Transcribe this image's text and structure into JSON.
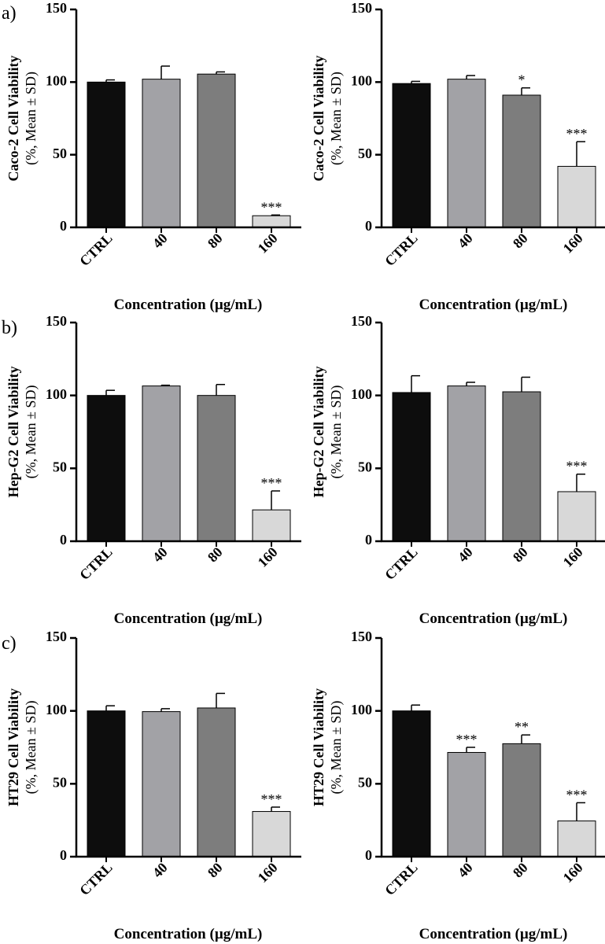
{
  "panel_labels": [
    "a)",
    "b)",
    "c)"
  ],
  "colors": {
    "CTRL": "#0d0d0d",
    "40": "#a2a2a6",
    "80": "#7d7d7d",
    "160": "#d8d8d8",
    "axis": "#000000"
  },
  "chart_data": [
    {
      "type": "bar",
      "categories": [
        "CTRL",
        "40",
        "80",
        "160"
      ],
      "values": [
        100,
        102,
        105.5,
        8
      ],
      "errors": [
        1.5,
        9,
        1.5,
        0.5
      ],
      "significance": [
        "",
        "",
        "",
        "***"
      ],
      "ylim": [
        0,
        150
      ],
      "yticks": [
        0,
        50,
        100,
        150
      ],
      "ylabel": "Caco-2 Cell Viability",
      "ylabel_sub": "(%, Mean ± SD)",
      "xlabel": "Concentration (µg/mL)",
      "grid": false
    },
    {
      "type": "bar",
      "categories": [
        "CTRL",
        "40",
        "80",
        "160"
      ],
      "values": [
        99,
        102,
        91,
        42
      ],
      "errors": [
        1.5,
        2.5,
        5,
        17
      ],
      "significance": [
        "",
        "",
        "*",
        "***"
      ],
      "ylim": [
        0,
        150
      ],
      "yticks": [
        0,
        50,
        100,
        150
      ],
      "ylabel": "Caco-2 Cell Viability",
      "ylabel_sub": "(%, Mean ± SD)",
      "xlabel": "Concentration (µg/mL)",
      "grid": false
    },
    {
      "type": "bar",
      "categories": [
        "CTRL",
        "40",
        "80",
        "160"
      ],
      "values": [
        100,
        106.5,
        100,
        21.5
      ],
      "errors": [
        3.5,
        0.5,
        7.5,
        13
      ],
      "significance": [
        "",
        "",
        "",
        "***"
      ],
      "ylim": [
        0,
        150
      ],
      "yticks": [
        0,
        50,
        100,
        150
      ],
      "ylabel": "Hep-G2 Cell Viability",
      "ylabel_sub": "(%, Mean ± SD)",
      "xlabel": "Concentration (µg/mL)",
      "grid": false
    },
    {
      "type": "bar",
      "categories": [
        "CTRL",
        "40",
        "80",
        "160"
      ],
      "values": [
        102,
        106.5,
        102.5,
        34
      ],
      "errors": [
        11.5,
        2.5,
        10,
        12
      ],
      "significance": [
        "",
        "",
        "",
        "***"
      ],
      "ylim": [
        0,
        150
      ],
      "yticks": [
        0,
        50,
        100,
        150
      ],
      "ylabel": "Hep-G2 Cell Viability",
      "ylabel_sub": "(%, Mean ± SD)",
      "xlabel": "Concentration (µg/mL)",
      "grid": false
    },
    {
      "type": "bar",
      "categories": [
        "CTRL",
        "40",
        "80",
        "160"
      ],
      "values": [
        100,
        99.5,
        102,
        31
      ],
      "errors": [
        3.5,
        2,
        10,
        3
      ],
      "significance": [
        "",
        "",
        "",
        "***"
      ],
      "ylim": [
        0,
        150
      ],
      "yticks": [
        0,
        50,
        100,
        150
      ],
      "ylabel": "HT29 Cell Viability",
      "ylabel_sub": "(%, Mean ± SD)",
      "xlabel": "Concentration (µg/mL)",
      "grid": false
    },
    {
      "type": "bar",
      "categories": [
        "CTRL",
        "40",
        "80",
        "160"
      ],
      "values": [
        100,
        71.5,
        77.5,
        24.5
      ],
      "errors": [
        4,
        3.5,
        6,
        12.5
      ],
      "significance": [
        "",
        "***",
        "**",
        "***"
      ],
      "ylim": [
        0,
        150
      ],
      "yticks": [
        0,
        50,
        100,
        150
      ],
      "ylabel": "HT29 Cell Viability",
      "ylabel_sub": "(%, Mean ± SD)",
      "xlabel": "Concentration (µg/mL)",
      "grid": false
    }
  ]
}
